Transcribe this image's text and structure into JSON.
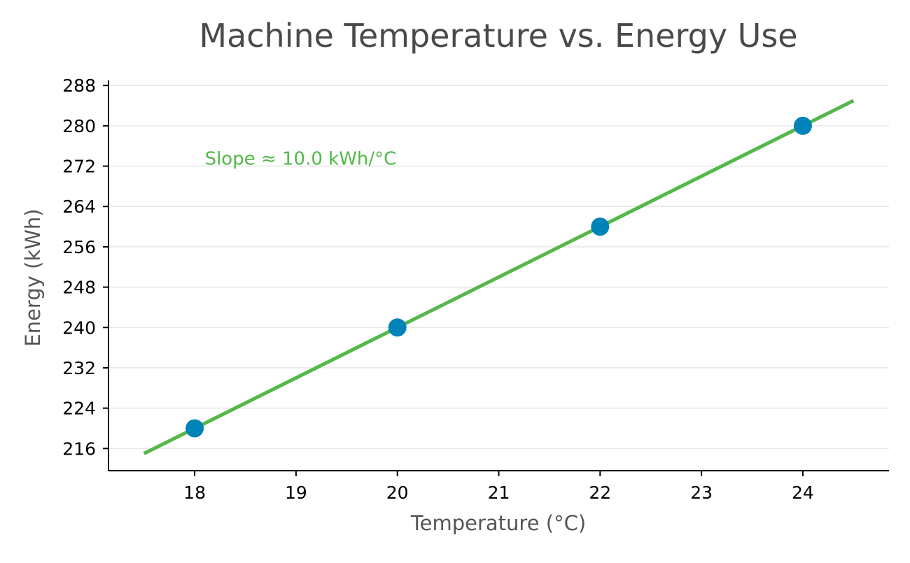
{
  "chart_data": {
    "type": "scatter",
    "title": "Machine Temperature vs. Energy Use",
    "xlabel": "Temperature (°C)",
    "ylabel": "Energy (kWh)",
    "xlim": [
      17.15,
      24.85
    ],
    "ylim": [
      211.6,
      289
    ],
    "xticks": [
      18,
      19,
      20,
      21,
      22,
      23,
      24
    ],
    "yticks": [
      216,
      224,
      232,
      240,
      248,
      256,
      264,
      272,
      280,
      288
    ],
    "grid": "y-only",
    "series": [
      {
        "kind": "points",
        "x": [
          18,
          20,
          22,
          24
        ],
        "y": [
          220,
          240,
          260,
          280
        ]
      },
      {
        "kind": "fit-line",
        "x": [
          17.5,
          24.5
        ],
        "y": [
          215,
          285
        ]
      }
    ],
    "annotations": [
      {
        "text": "Slope ≈ 10.0 kWh/°C",
        "x": 18.1,
        "y": 273.5
      }
    ],
    "colors": {
      "points": "#0083b8",
      "line": "#53b848",
      "annotation": "#53b848"
    }
  }
}
